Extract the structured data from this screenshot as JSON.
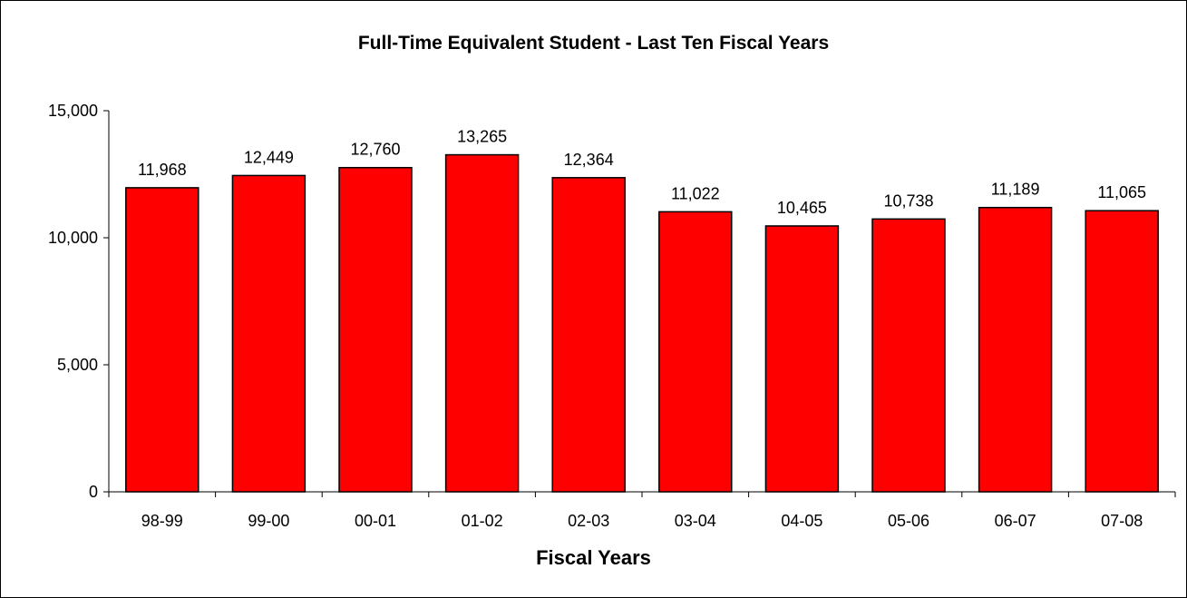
{
  "chart_data": {
    "type": "bar",
    "title": "Full-Time Equivalent Student - Last Ten Fiscal Years",
    "xlabel": "Fiscal Years",
    "ylabel": "",
    "categories": [
      "98-99",
      "99-00",
      "00-01",
      "01-02",
      "02-03",
      "03-04",
      "04-05",
      "05-06",
      "06-07",
      "07-08"
    ],
    "values": [
      11968,
      12449,
      12760,
      13265,
      12364,
      11022,
      10465,
      10738,
      11189,
      11065
    ],
    "data_labels": [
      "11,968",
      "12,449",
      "12,760",
      "13,265",
      "12,364",
      "11,022",
      "10,465",
      "10,738",
      "11,189",
      "11,065"
    ],
    "yticks": [
      0,
      5000,
      10000,
      15000
    ],
    "ytick_labels": [
      "0",
      "5,000",
      "10,000",
      "15,000"
    ],
    "ylim": [
      0,
      15000
    ],
    "grid": false,
    "legend": "none",
    "bar_color": "#ff0000",
    "bar_edge_color": "#000000"
  }
}
